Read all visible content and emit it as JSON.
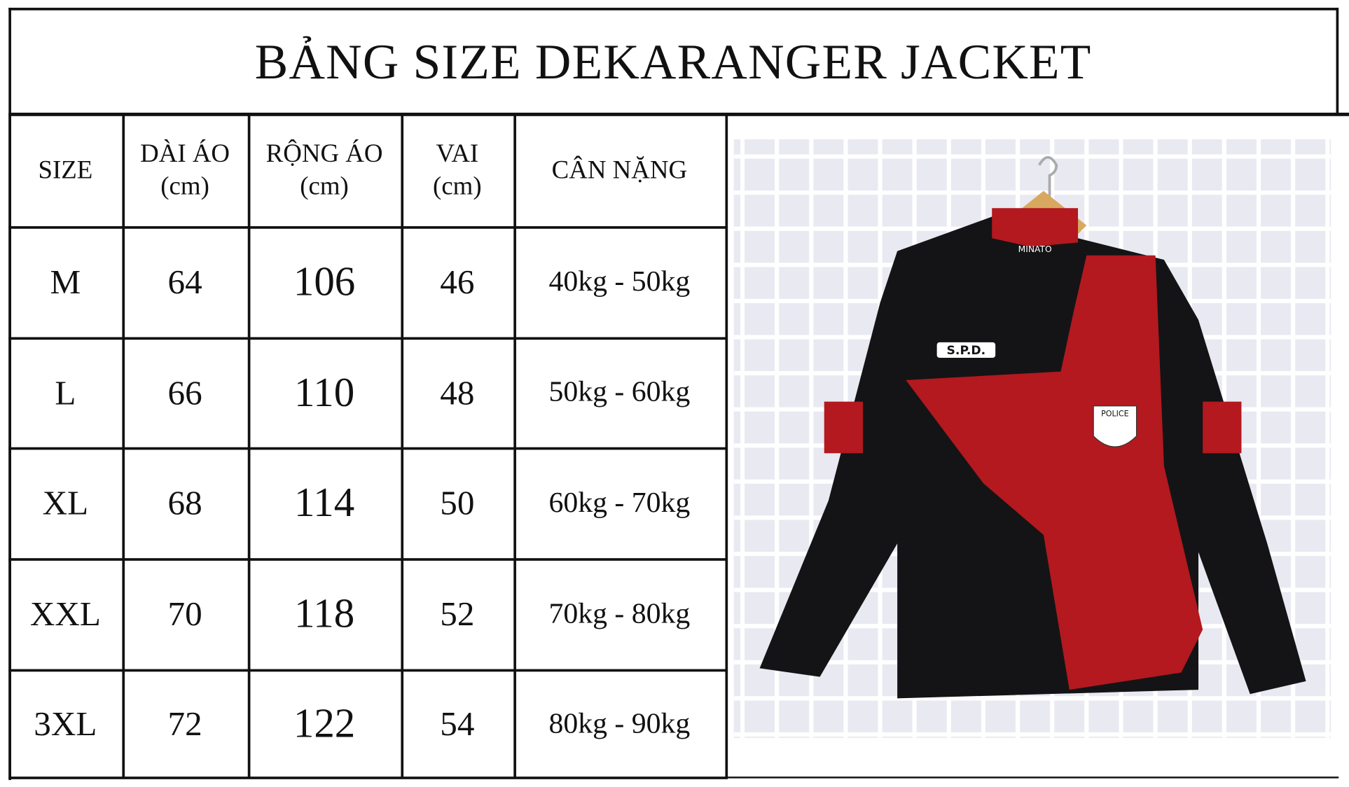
{
  "title": "BẢNG SIZE DEKARANGER JACKET",
  "table": {
    "headers": [
      {
        "line1": "SIZE",
        "line2": ""
      },
      {
        "line1": "DÀI ÁO",
        "line2": "(cm)"
      },
      {
        "line1": "RỘNG ÁO",
        "line2": "(cm)"
      },
      {
        "line1": "VAI",
        "line2": "(cm)"
      },
      {
        "line1": "CÂN NẶNG",
        "line2": ""
      }
    ],
    "rows": [
      [
        "M",
        "64",
        "106",
        "46",
        "40kg - 50kg"
      ],
      [
        "L",
        "66",
        "110",
        "48",
        "50kg - 60kg"
      ],
      [
        "XL",
        "68",
        "114",
        "50",
        "60kg - 70kg"
      ],
      [
        "XXL",
        "70",
        "118",
        "52",
        "70kg - 80kg"
      ],
      [
        "3XL",
        "72",
        "122",
        "54",
        "80kg - 90kg"
      ]
    ]
  },
  "photo": {
    "brand_tag": "MINATO",
    "chest_logo": "S.P.D.",
    "badge": "POLICE",
    "colors": {
      "black": "#141416",
      "red": "#b3191e",
      "grid": "#ffffff",
      "background": "#e9e9f2"
    }
  }
}
